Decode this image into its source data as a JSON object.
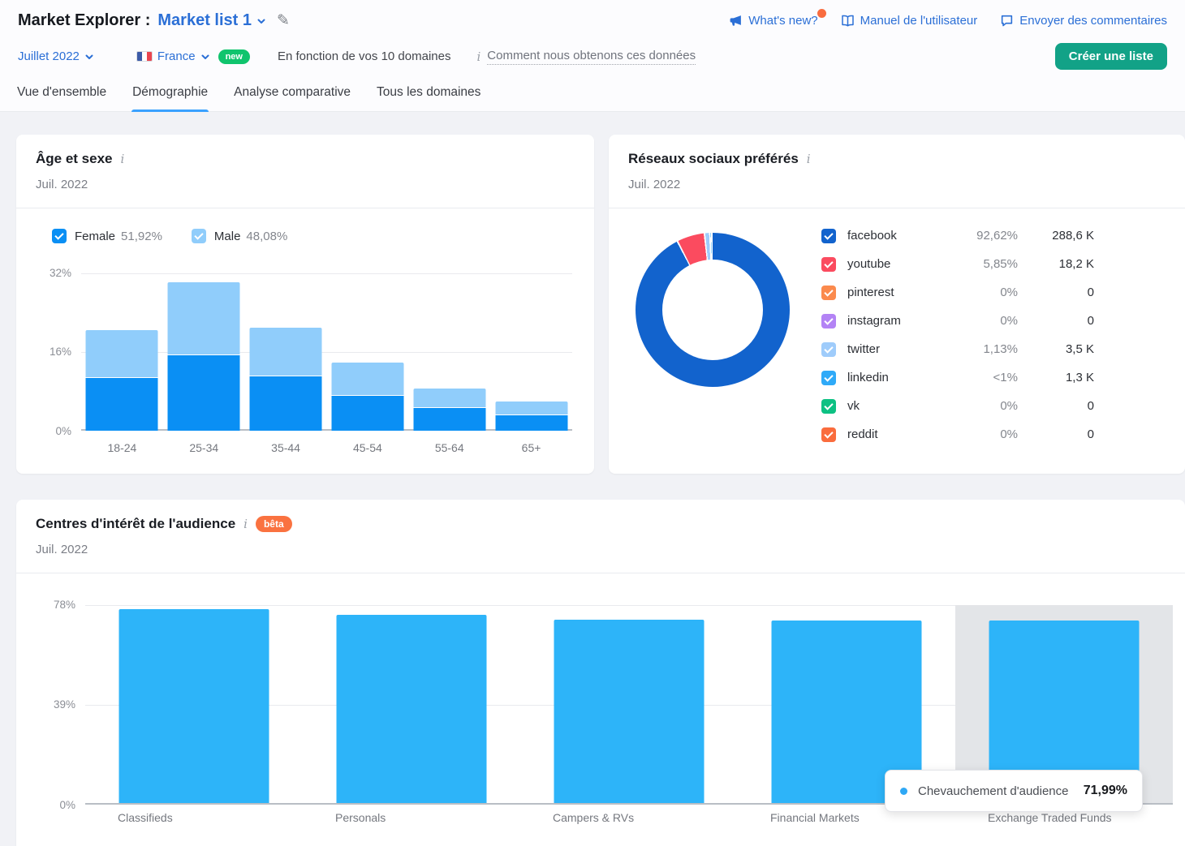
{
  "header": {
    "title_prefix": "Market Explorer :",
    "market_list": "Market list 1",
    "links": {
      "whats_new": "What's new?",
      "manual": "Manuel de l'utilisateur",
      "feedback": "Envoyer des commentaires"
    },
    "period_selector": "Juillet 2022",
    "country": "France",
    "new_badge": "new",
    "basis_note": "En fonction de vos 10 domaines",
    "how_link": "Comment nous obtenons ces données",
    "create_list": "Créer une liste"
  },
  "tabs": [
    {
      "label": "Vue d'ensemble",
      "active": false
    },
    {
      "label": "Démographie",
      "active": true
    },
    {
      "label": "Analyse comparative",
      "active": false
    },
    {
      "label": "Tous les domaines",
      "active": false
    }
  ],
  "age_card": {
    "title": "Âge et sexe",
    "period": "Juil. 2022",
    "female_label": "Female",
    "female_pct": "51,92%",
    "male_label": "Male",
    "male_pct": "48,08%",
    "chart_data": {
      "type": "bar",
      "stacked": true,
      "categories": [
        "18-24",
        "25-34",
        "35-44",
        "45-54",
        "55-64",
        "65+"
      ],
      "series": [
        {
          "name": "Female",
          "color": "#0a8ff4",
          "values": [
            10.7,
            15.3,
            11.0,
            7.1,
            4.6,
            3.2
          ]
        },
        {
          "name": "Male",
          "color": "#90cdfb",
          "values": [
            9.8,
            14.9,
            10.0,
            6.7,
            3.9,
            2.7
          ]
        }
      ],
      "yticks": [
        "0%",
        "16%",
        "32%"
      ],
      "ylim": [
        0,
        32
      ]
    }
  },
  "social_card": {
    "title": "Réseaux sociaux préférés",
    "period": "Juil. 2022",
    "chart_data": {
      "type": "pie",
      "donut": true,
      "slices": [
        {
          "name": "facebook",
          "pct": 92.62,
          "color": "#1263cd"
        },
        {
          "name": "youtube",
          "pct": 5.85,
          "color": "#fb4b5f"
        },
        {
          "name": "twitter",
          "pct": 1.13,
          "color": "#9fccfb"
        },
        {
          "name": "linkedin",
          "pct": 0.4,
          "color": "#2faaf8"
        }
      ]
    },
    "legend": [
      {
        "name": "facebook",
        "pct": "92,62%",
        "value": "288,6 K",
        "color": "#1263cd"
      },
      {
        "name": "youtube",
        "pct": "5,85%",
        "value": "18,2 K",
        "color": "#fb4b5f"
      },
      {
        "name": "pinterest",
        "pct": "0%",
        "value": "0",
        "color": "#fb8a4d"
      },
      {
        "name": "instagram",
        "pct": "0%",
        "value": "0",
        "color": "#b383f5"
      },
      {
        "name": "twitter",
        "pct": "1,13%",
        "value": "3,5 K",
        "color": "#9fccfb"
      },
      {
        "name": "linkedin",
        "pct": "<1%",
        "value": "1,3 K",
        "color": "#2faaf8"
      },
      {
        "name": "vk",
        "pct": "0%",
        "value": "0",
        "color": "#0dc183"
      },
      {
        "name": "reddit",
        "pct": "0%",
        "value": "0",
        "color": "#fa6c3d"
      }
    ]
  },
  "interests_card": {
    "title": "Centres d'intérêt de l'audience",
    "beta": "bêta",
    "period": "Juil. 2022",
    "chart_data": {
      "type": "bar",
      "categories": [
        "Classifieds",
        "Personals",
        "Campers & RVs",
        "Financial Markets",
        "Exchange Traded Funds"
      ],
      "values": [
        76.4,
        74.1,
        72.4,
        72.0,
        71.99
      ],
      "yticks": [
        "0%",
        "39%",
        "78%"
      ],
      "ylim": [
        0,
        78
      ],
      "bar_color": "#2db4f9",
      "highlighted_index": 4
    },
    "tooltip": {
      "label": "Chevauchement d'audience",
      "value": "71,99%"
    }
  },
  "colors": {
    "accent_blue": "#2b6fd6",
    "tab_active_underline": "#3aa1ff",
    "create_button_green": "#12a287",
    "new_badge_green": "#10c46d",
    "beta_badge_orange": "#fa7240",
    "notification_dot": "#f96c3f",
    "female_bar": "#0a8ff4",
    "male_bar": "#90cdfb",
    "interest_bar": "#2db4f9",
    "highlight_band": "#e3e5e8"
  }
}
